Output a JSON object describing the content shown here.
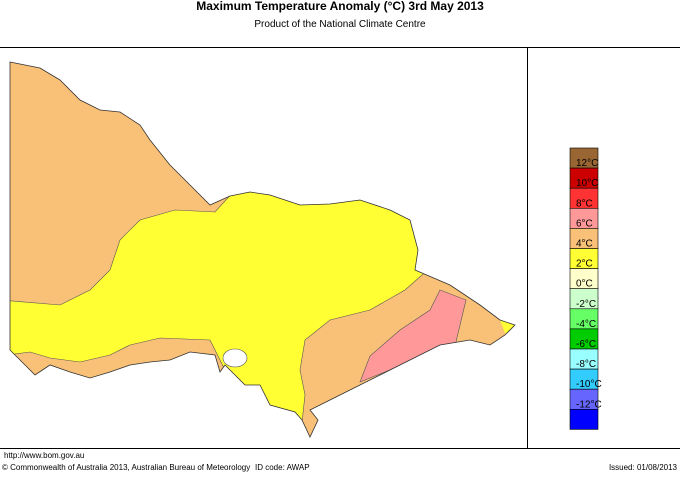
{
  "header": {
    "title": "Maximum Temperature Anomaly (°C)  3rd May 2013",
    "subtitle": "Product of the National Climate Centre"
  },
  "legend": {
    "colors": [
      "#996633",
      "#cc0000",
      "#ff3333",
      "#ff9999",
      "#f9c077",
      "#ffff33",
      "#ffffcc",
      "#ccffcc",
      "#66ff66",
      "#00cc00",
      "#99ffff",
      "#33ccff",
      "#6666ff",
      "#0000ff"
    ],
    "labels": [
      "12°C",
      "10°C",
      "8°C",
      "6°C",
      "4°C",
      "2°C",
      "0°C",
      "-2°C",
      "-4°C",
      "-6°C",
      "-8°C",
      "-10°C",
      "-12°C"
    ]
  },
  "footer": {
    "url": "http://www.bom.gov.au",
    "copyright": "© Commonwealth of Australia 2013, Australian Bureau of Meteorology",
    "id_code": "ID code: AWAP",
    "issued": "Issued: 01/08/2013"
  }
}
